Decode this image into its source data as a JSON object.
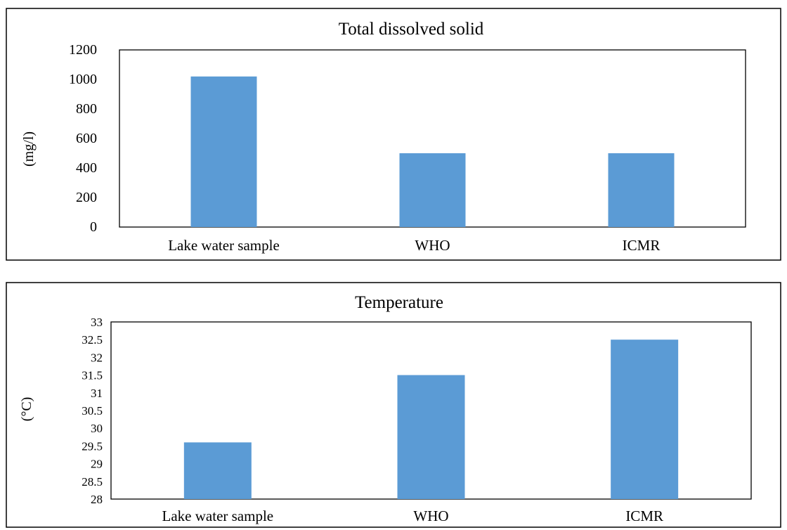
{
  "chart_data": [
    {
      "type": "bar",
      "title": "Total dissolved solid",
      "ylabel": "(mg/l)",
      "xlabel": "",
      "categories": [
        "Lake water sample",
        "WHO",
        "ICMR"
      ],
      "values": [
        1020,
        500,
        500
      ],
      "ylim": [
        0,
        1200
      ],
      "yticks": [
        "0",
        "200",
        "400",
        "600",
        "800",
        "1000",
        "1200"
      ],
      "ytick_values": [
        0,
        200,
        400,
        600,
        800,
        1000,
        1200
      ],
      "bar_color": "#5b9bd5",
      "grid": false,
      "legend": "none"
    },
    {
      "type": "bar",
      "title": "Temperature",
      "ylabel": "(°C)",
      "xlabel": "",
      "categories": [
        "Lake water sample",
        "WHO",
        "ICMR"
      ],
      "values": [
        29.6,
        31.5,
        32.5
      ],
      "ylim": [
        28,
        33
      ],
      "yticks": [
        "28",
        "28.5",
        "29",
        "29.5",
        "30",
        "30.5",
        "31",
        "31.5",
        "32",
        "32.5",
        "33"
      ],
      "ytick_values": [
        28,
        28.5,
        29,
        29.5,
        30,
        30.5,
        31,
        31.5,
        32,
        32.5,
        33
      ],
      "bar_color": "#5b9bd5",
      "grid": false,
      "legend": "none"
    }
  ]
}
